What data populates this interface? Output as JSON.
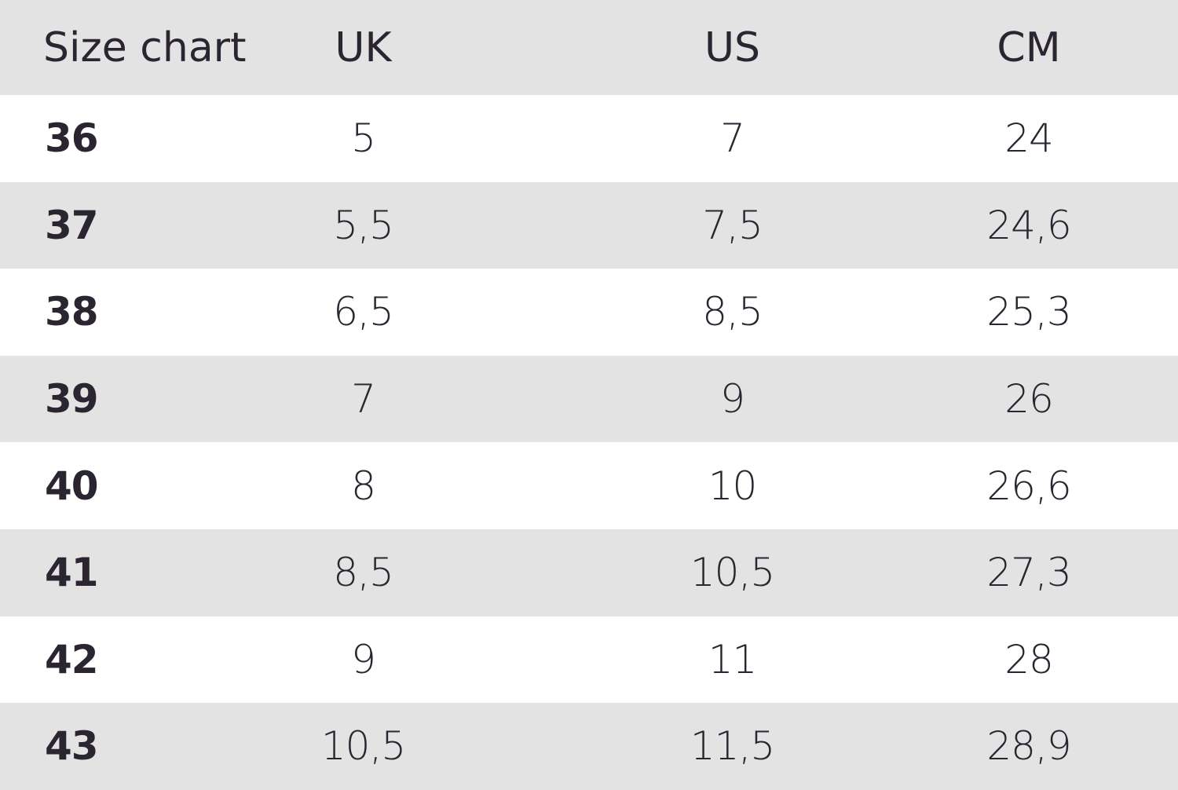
{
  "table": {
    "headers": [
      "Size chart",
      "UK",
      "US",
      "CM"
    ],
    "rows": [
      [
        "36",
        "5",
        "7",
        "24"
      ],
      [
        "37",
        "5,5",
        "7,5",
        "24,6"
      ],
      [
        "38",
        "6,5",
        "8,5",
        "25,3"
      ],
      [
        "39",
        "7",
        "9",
        "26"
      ],
      [
        "40",
        "8",
        "10",
        "26,6"
      ],
      [
        "41",
        "8,5",
        "10,5",
        "27,3"
      ],
      [
        "42",
        "9",
        "11",
        "28"
      ],
      [
        "43",
        "10,5",
        "11,5",
        "28,9"
      ]
    ]
  },
  "colors": {
    "stripe": "#e3e3e3",
    "text": "#2a2530",
    "background": "#ffffff"
  }
}
